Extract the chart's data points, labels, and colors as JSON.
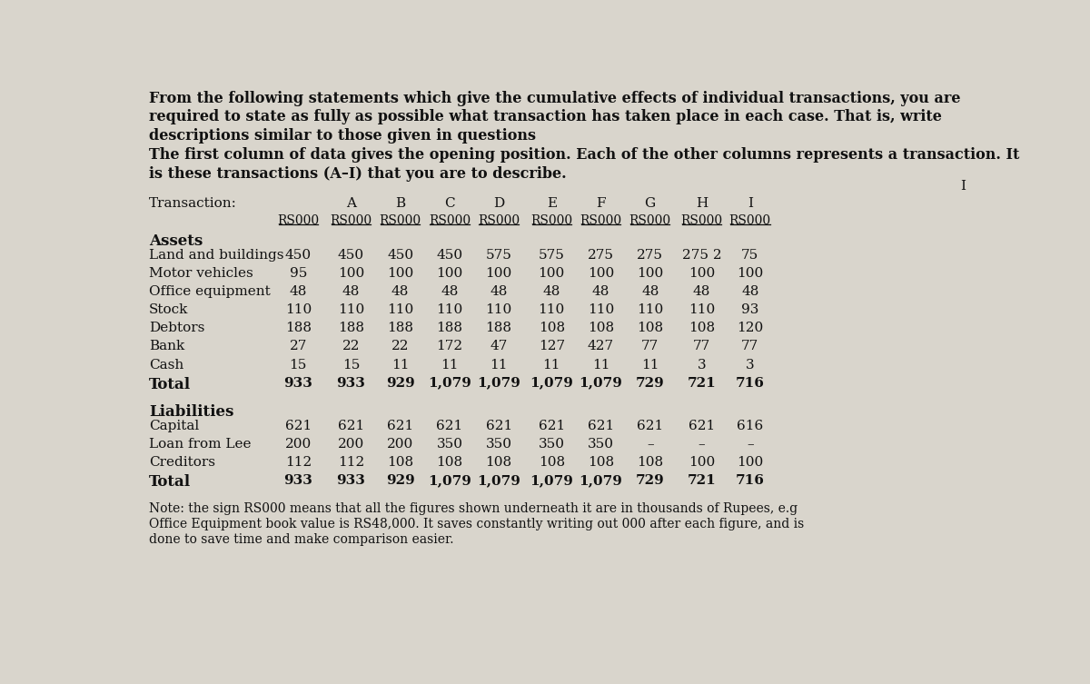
{
  "intro_text": [
    "From the following statements which give the cumulative effects of individual transactions, you are",
    "required to state as fully as possible what transaction has taken place in each case. That is, write",
    "descriptions similar to those given in questions",
    "The first column of data gives the opening position. Each of the other columns represents a transaction. It",
    "is these transactions (A–I) that you are to describe."
  ],
  "transaction_label": "Transaction:",
  "col_letters": [
    "A",
    "B",
    "C",
    "D",
    "E",
    "F",
    "G",
    "H",
    "I"
  ],
  "rs_label": "RS000",
  "assets_label": "Assets",
  "asset_rows": [
    {
      "label": "Land and buildings",
      "values": [
        "450",
        "450",
        "450",
        "450",
        "575",
        "575",
        "275",
        "275",
        "275 2",
        "75"
      ]
    },
    {
      "label": "Motor vehicles",
      "values": [
        "95",
        "100",
        "100",
        "100",
        "100",
        "100",
        "100",
        "100",
        "100",
        "100"
      ]
    },
    {
      "label": "Office equipment",
      "values": [
        "48",
        "48",
        "48",
        "48",
        "48",
        "48",
        "48",
        "48",
        "48",
        "48"
      ]
    },
    {
      "label": "Stock",
      "values": [
        "110",
        "110",
        "110",
        "110",
        "110",
        "110",
        "110",
        "110",
        "110",
        "93"
      ]
    },
    {
      "label": "Debtors",
      "values": [
        "188",
        "188",
        "188",
        "188",
        "188",
        "108",
        "108",
        "108",
        "108",
        "120"
      ]
    },
    {
      "label": "Bank",
      "values": [
        "27",
        "22",
        "22",
        "172",
        "47",
        "127",
        "427",
        "77",
        "77",
        "77"
      ]
    },
    {
      "label": "Cash",
      "values": [
        "15",
        "15",
        "11",
        "11",
        "11",
        "11",
        "11",
        "11",
        "3",
        "3"
      ]
    }
  ],
  "total_assets": {
    "label": "Total",
    "values": [
      "933",
      "933",
      "929",
      "1,079",
      "1,079",
      "1,079",
      "1,079",
      "729",
      "721",
      "716"
    ]
  },
  "liabilities_label": "Liabilities",
  "liability_rows": [
    {
      "label": "Capital",
      "values": [
        "621",
        "621",
        "621",
        "621",
        "621",
        "621",
        "621",
        "621",
        "621",
        "616"
      ]
    },
    {
      "label": "Loan from Lee",
      "values": [
        "200",
        "200",
        "200",
        "350",
        "350",
        "350",
        "350",
        "–",
        "–",
        "–"
      ]
    },
    {
      "label": "Creditors",
      "values": [
        "112",
        "112",
        "108",
        "108",
        "108",
        "108",
        "108",
        "108",
        "100",
        "100"
      ]
    }
  ],
  "total_liabilities": {
    "label": "Total",
    "values": [
      "933",
      "933",
      "929",
      "1,079",
      "1,079",
      "1,079",
      "1,079",
      "729",
      "721",
      "716"
    ]
  },
  "note_text": [
    "Note: the sign RS000 means that all the figures shown underneath it are in thousands of Rupees, e.g",
    "Office Equipment book value is RS48,000. It saves constantly writing out 000 after each figure, and is",
    "done to save time and make comparison easier."
  ],
  "bg_color": "#d9d5cc",
  "text_color": "#111111"
}
